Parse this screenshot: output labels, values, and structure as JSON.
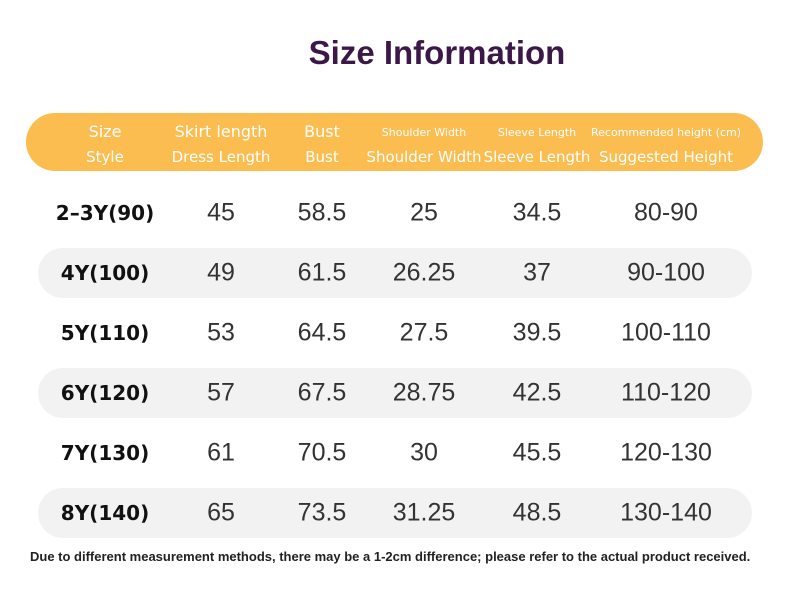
{
  "title": "Size Information",
  "table": {
    "header": [
      [
        "Size",
        "Style"
      ],
      [
        "Skirt length",
        "Dress Length"
      ],
      [
        "Bust",
        "Bust"
      ],
      [
        "Shoulder Width",
        "Shoulder Width"
      ],
      [
        "Sleeve Length",
        "Sleeve Length"
      ],
      [
        "Recommended height (cm)",
        "Suggested Height"
      ]
    ],
    "rows": [
      [
        "2–3Y(90)",
        "45",
        "58.5",
        "25",
        "34.5",
        "80-90"
      ],
      [
        "4Y(100)",
        "49",
        "61.5",
        "26.25",
        "37",
        "90-100"
      ],
      [
        "5Y(110)",
        "53",
        "64.5",
        "27.5",
        "39.5",
        "100-110"
      ],
      [
        "6Y(120)",
        "57",
        "67.5",
        "28.75",
        "42.5",
        "110-120"
      ],
      [
        "7Y(130)",
        "61",
        "70.5",
        "30",
        "45.5",
        "120-130"
      ],
      [
        "8Y(140)",
        "65",
        "73.5",
        "31.25",
        "48.5",
        "130-140"
      ]
    ]
  },
  "footnote": "Due to different measurement methods, there may be a 1-2cm difference; please refer to the actual product received."
}
